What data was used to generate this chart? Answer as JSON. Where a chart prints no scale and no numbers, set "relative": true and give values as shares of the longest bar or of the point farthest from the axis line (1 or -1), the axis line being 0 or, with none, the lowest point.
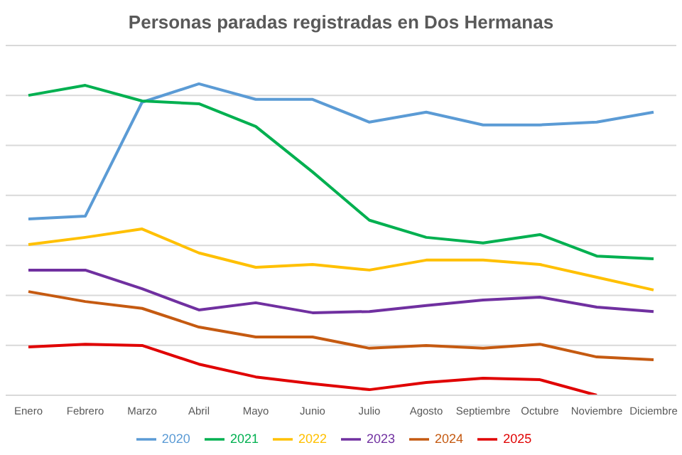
{
  "chart_data": {
    "type": "line",
    "title": "Personas paradas registradas en Dos Hermanas",
    "relative": true,
    "grid": "y",
    "legend": "bottom",
    "marker": "none",
    "line_style": "solid",
    "categories": [
      "Enero",
      "Febrero",
      "Marzo",
      "Abril",
      "Mayo",
      "Junio",
      "Julio",
      "Agosto",
      "Septiembre",
      "Octubre",
      "Noviembre",
      "Diciembre"
    ],
    "series": [
      {
        "name": "2020",
        "color": "#5b9bd5",
        "values": [
          0.566,
          0.575,
          0.941,
          1,
          0.95,
          0.95,
          0.877,
          0.909,
          0.868,
          0.868,
          0.877,
          0.909
        ]
      },
      {
        "name": "2021",
        "color": "#00b050",
        "values": [
          0.963,
          0.995,
          0.945,
          0.936,
          0.863,
          0.717,
          0.562,
          0.507,
          0.489,
          0.516,
          0.447,
          0.438
        ]
      },
      {
        "name": "2022",
        "color": "#ffc000",
        "values": [
          0.484,
          0.507,
          0.534,
          0.457,
          0.411,
          0.42,
          0.402,
          0.434,
          0.434,
          0.42,
          0.379,
          0.338
        ]
      },
      {
        "name": "2023",
        "color": "#7030a0",
        "values": [
          0.402,
          0.402,
          0.342,
          0.274,
          0.297,
          0.265,
          0.269,
          0.288,
          0.306,
          0.315,
          0.283,
          0.269
        ]
      },
      {
        "name": "2024",
        "color": "#c55a11",
        "values": [
          0.333,
          0.301,
          0.279,
          0.219,
          0.187,
          0.187,
          0.151,
          0.16,
          0.151,
          0.164,
          0.123,
          0.114
        ]
      },
      {
        "name": "2025",
        "color": "#e00000",
        "values": [
          0.155,
          0.164,
          0.16,
          0.1,
          0.059,
          0.037,
          0.018,
          0.041,
          0.055,
          0.05,
          0,
          null
        ]
      }
    ]
  }
}
